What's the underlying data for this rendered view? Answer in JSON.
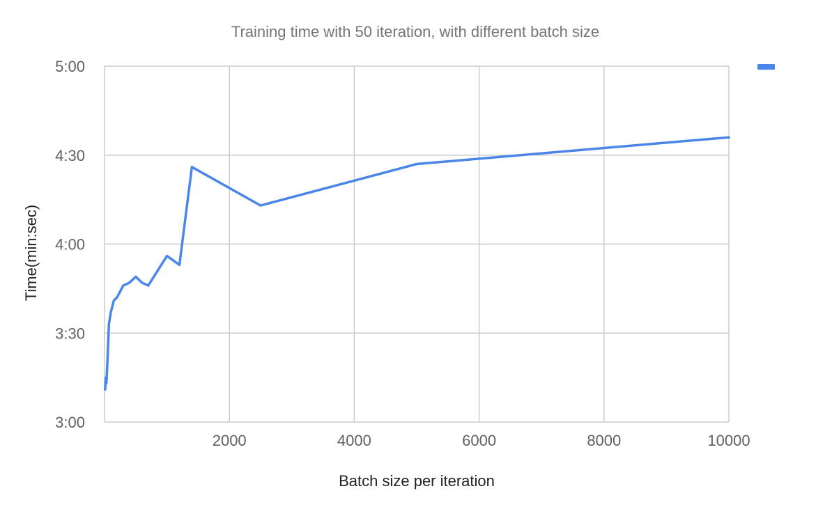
{
  "chart_data": {
    "type": "line",
    "title": "Training time with 50 iteration, with different batch size",
    "xlabel": "Batch size per iteration",
    "ylabel": "Time(min:sec)",
    "xlim": [
      0,
      10000
    ],
    "ylim": [
      180,
      300
    ],
    "x_ticks": [
      2000,
      4000,
      6000,
      8000,
      10000
    ],
    "x_tick_labels": [
      "2000",
      "4000",
      "6000",
      "8000",
      "10000"
    ],
    "y_ticks": [
      180,
      210,
      240,
      270,
      300
    ],
    "y_tick_labels": [
      "3:00",
      "3:30",
      "4:00",
      "4:30",
      "5:00"
    ],
    "grid": true,
    "legend": "top-right",
    "series": [
      {
        "color": "#4a86e8",
        "x": [
          10,
          20,
          30,
          50,
          70,
          100,
          150,
          200,
          300,
          400,
          500,
          600,
          700,
          1000,
          1200,
          1400,
          2500,
          5000,
          10000
        ],
        "y": [
          191,
          195,
          193,
          202,
          213,
          217,
          221,
          222,
          226,
          227,
          229,
          227,
          226,
          236,
          233,
          266,
          253,
          267,
          276
        ]
      }
    ]
  }
}
